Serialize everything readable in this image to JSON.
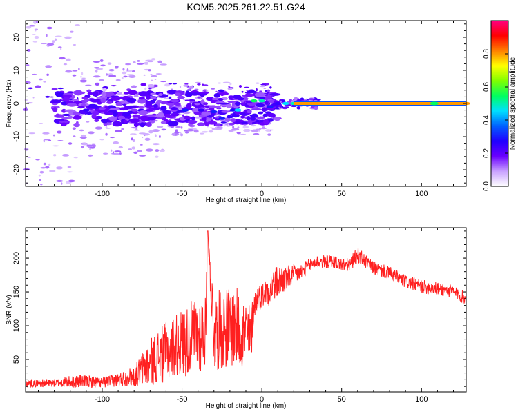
{
  "chart_data": [
    {
      "type": "heatmap",
      "title": "KOM5.2025.261.22.51.G24",
      "xlabel": "Height of straight line (km)",
      "ylabel": "Frequency (Hz)",
      "xlim": [
        -148,
        128
      ],
      "ylim": [
        -25,
        25
      ],
      "xticks": [
        -100,
        -50,
        0,
        50,
        100
      ],
      "yticks": [
        -20,
        -10,
        0,
        10,
        20
      ],
      "xtick_labels": [
        "-100",
        "-50",
        "0",
        "50",
        "100"
      ],
      "ytick_labels": [
        "-20",
        "-10",
        "0",
        "10",
        "20"
      ],
      "colorbar": {
        "label": "Normalized spectral amplitude",
        "range": [
          0,
          1
        ],
        "ticks": [
          "0.0",
          "0.2",
          "0.4",
          "0.6",
          "0.8"
        ],
        "tick_values": [
          0,
          0.2,
          0.4,
          0.6,
          0.8
        ],
        "colormap": [
          "#ffffff",
          "#c8a0ff",
          "#6a00ff",
          "#2000ff",
          "#0060ff",
          "#00e0ff",
          "#00ff60",
          "#80ff00",
          "#ffff00",
          "#ff8000",
          "#ff0000",
          "#ff0080"
        ]
      },
      "ridge": [
        {
          "x": -110,
          "f": -2.0,
          "a": 0.25
        },
        {
          "x": -100,
          "f": -1.5,
          "a": 0.15
        },
        {
          "x": -80,
          "f": -2.0,
          "a": 0.15
        },
        {
          "x": -70,
          "f": -2.0,
          "a": 0.18
        },
        {
          "x": -55,
          "f": -1.5,
          "a": 0.22
        },
        {
          "x": -48,
          "f": -2.0,
          "a": 0.3
        },
        {
          "x": -38,
          "f": -2.0,
          "a": 0.25
        },
        {
          "x": -30,
          "f": -2.5,
          "a": 0.3
        },
        {
          "x": -25,
          "f": -4.5,
          "a": 0.3
        },
        {
          "x": -20,
          "f": -4.0,
          "a": 0.25
        },
        {
          "x": -18,
          "f": -2.0,
          "a": 0.28
        },
        {
          "x": -15,
          "f": -2.0,
          "a": 0.45
        },
        {
          "x": -8,
          "f": 0.5,
          "a": 0.2
        },
        {
          "x": -5,
          "f": 0.8,
          "a": 0.55
        },
        {
          "x": 0,
          "f": 0.8,
          "a": 0.5
        },
        {
          "x": 5,
          "f": -1.0,
          "a": 0.3
        },
        {
          "x": 10,
          "f": 0.0,
          "a": 0.25
        },
        {
          "x": 15,
          "f": 0.0,
          "a": 0.45
        },
        {
          "x": 20,
          "f": 0.0,
          "a": 0.5
        },
        {
          "x": 25,
          "f": 0.0,
          "a": 0.6
        },
        {
          "x": 30,
          "f": 0.0,
          "a": 0.75
        },
        {
          "x": 40,
          "f": 0.0,
          "a": 0.8
        },
        {
          "x": 60,
          "f": 0.0,
          "a": 0.85
        },
        {
          "x": 80,
          "f": 0.0,
          "a": 0.82
        },
        {
          "x": 100,
          "f": 0.0,
          "a": 0.8
        },
        {
          "x": 108,
          "f": 0.0,
          "a": 0.6
        },
        {
          "x": 128,
          "f": 0.0,
          "a": 0.8
        }
      ]
    },
    {
      "type": "line",
      "title": "",
      "xlabel": "Height of straight line (km)",
      "ylabel": "SNR (v/v)",
      "xlim": [
        -148,
        128
      ],
      "ylim": [
        2,
        245
      ],
      "xticks": [
        -100,
        -50,
        0,
        50,
        100
      ],
      "yticks": [
        50,
        100,
        150,
        200
      ],
      "xtick_labels": [
        "-100",
        "-50",
        "0",
        "50",
        "100"
      ],
      "ytick_labels": [
        "50",
        "100",
        "150",
        "200"
      ],
      "series_color": "#ff2020",
      "series": [
        {
          "name": "SNR",
          "x": [
            -148,
            -130,
            -115,
            -100,
            -90,
            -80,
            -75,
            -70,
            -65,
            -60,
            -55,
            -50,
            -45,
            -40,
            -35,
            -34,
            -30,
            -25,
            -20,
            -15,
            -10,
            -7,
            -5,
            -3,
            0,
            5,
            10,
            15,
            20,
            25,
            30,
            35,
            40,
            45,
            50,
            55,
            60,
            65,
            70,
            80,
            90,
            100,
            110,
            120,
            128
          ],
          "values": [
            15,
            15,
            18,
            16,
            20,
            25,
            35,
            45,
            55,
            60,
            70,
            75,
            80,
            85,
            95,
            240,
            90,
            95,
            100,
            95,
            90,
            80,
            130,
            140,
            145,
            155,
            165,
            170,
            175,
            180,
            190,
            195,
            195,
            195,
            190,
            190,
            205,
            195,
            185,
            178,
            165,
            158,
            155,
            150,
            140
          ],
          "noise_amplitude": [
            6,
            6,
            10,
            8,
            10,
            15,
            25,
            35,
            40,
            45,
            45,
            50,
            55,
            60,
            55,
            0,
            60,
            60,
            60,
            60,
            55,
            50,
            20,
            20,
            18,
            25,
            25,
            20,
            15,
            12,
            10,
            10,
            10,
            10,
            10,
            10,
            12,
            10,
            10,
            10,
            10,
            10,
            10,
            10,
            10
          ]
        }
      ]
    }
  ]
}
